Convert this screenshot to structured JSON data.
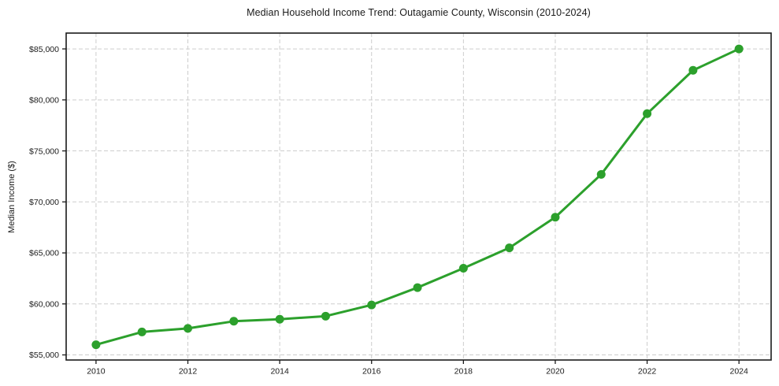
{
  "figure": {
    "title": "Median Household Income Trend: Outagamie County, Wisconsin (2010-2024)"
  },
  "chart_data": {
    "type": "line",
    "title": "Median Household Income Trend: Outagamie County, Wisconsin (2010-2024)",
    "xlabel": "",
    "ylabel": "Median Income ($)",
    "x": [
      2010,
      2011,
      2012,
      2013,
      2014,
      2015,
      2016,
      2017,
      2018,
      2019,
      2020,
      2021,
      2022,
      2023,
      2024
    ],
    "series": [
      {
        "name": "Median Household Income",
        "color": "#2ca02c",
        "marker": "circle",
        "values": [
          56000,
          57250,
          57600,
          58300,
          58500,
          58800,
          59900,
          61600,
          63500,
          65500,
          68500,
          72700,
          78650,
          82900,
          85000
        ]
      }
    ],
    "x_ticks": {
      "values": [
        2010,
        2012,
        2014,
        2016,
        2018,
        2020,
        2022,
        2024
      ],
      "labels": [
        "2010",
        "2012",
        "2014",
        "2016",
        "2018",
        "2020",
        "2022",
        "2024"
      ]
    },
    "y_ticks": {
      "values": [
        55000,
        60000,
        65000,
        70000,
        75000,
        80000,
        85000
      ],
      "labels": [
        "$55,000",
        "$60,000",
        "$65,000",
        "$70,000",
        "$75,000",
        "$80,000",
        "$85,000"
      ]
    },
    "xlim": [
      2009.35,
      2024.7
    ],
    "ylim": [
      54500,
      86550
    ],
    "grid": {
      "horizontal": true,
      "vertical": true,
      "style": "dashed"
    },
    "legend": "none"
  },
  "style": {
    "line_color": "#2ca02c",
    "grid_color": "#cdcdcd",
    "axis_color": "#1a1a1a",
    "text_color": "#1a1a1a",
    "background": "#ffffff"
  }
}
